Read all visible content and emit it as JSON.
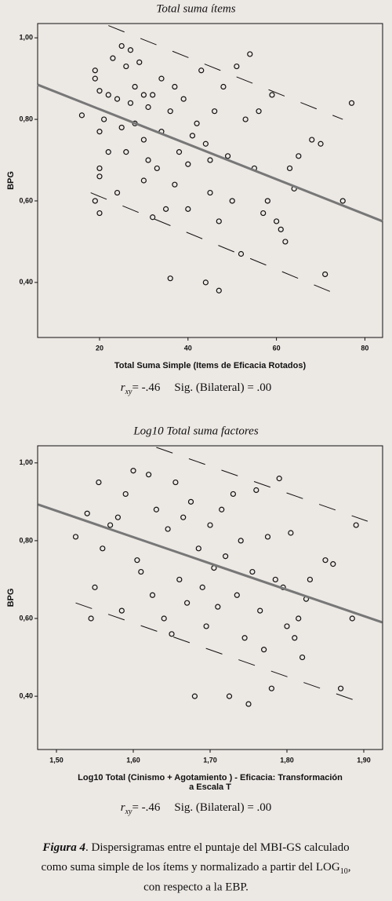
{
  "chart_data": [
    {
      "type": "scatter",
      "title": "Total suma ítems",
      "x_label": [
        "Total Suma Simple (Items de Eficacia Rotados)"
      ],
      "y_label": "BPG",
      "xlim": [
        6,
        84
      ],
      "ylim": [
        0.265,
        1.035
      ],
      "xticks": [
        20,
        40,
        60,
        80
      ],
      "yticks": [
        {
          "value": 0.4,
          "label": "0,40"
        },
        {
          "value": 0.6,
          "label": "0,60"
        },
        {
          "value": 0.8,
          "label": "0,80"
        },
        {
          "value": 1,
          "label": "1,00"
        }
      ],
      "marker_color": "#111",
      "line_color": "#777",
      "x": [
        16,
        19,
        19,
        19,
        20,
        20,
        20,
        20,
        20,
        21,
        22,
        23,
        24,
        24,
        25,
        25,
        26,
        26,
        27,
        27,
        28,
        28,
        29,
        30,
        30,
        31,
        31,
        32,
        32,
        33,
        34,
        34,
        35,
        36,
        36,
        37,
        38,
        39,
        40,
        40,
        41,
        42,
        43,
        44,
        44,
        45,
        46,
        47,
        47,
        48,
        49,
        50,
        51,
        52,
        53,
        54,
        55,
        56,
        57,
        58,
        59,
        60,
        61,
        62,
        63,
        64,
        65,
        68,
        70,
        71,
        75,
        77,
        37,
        30,
        45,
        22
      ],
      "values": [
        0.81,
        0.92,
        0.9,
        0.6,
        0.87,
        0.68,
        0.66,
        0.57,
        0.77,
        0.8,
        0.86,
        0.95,
        0.62,
        0.85,
        0.98,
        0.78,
        0.72,
        0.93,
        0.97,
        0.84,
        0.88,
        0.79,
        0.94,
        0.75,
        0.65,
        0.7,
        0.83,
        0.86,
        0.56,
        0.68,
        0.9,
        0.77,
        0.58,
        0.41,
        0.82,
        0.64,
        0.72,
        0.85,
        0.69,
        0.58,
        0.76,
        0.79,
        0.92,
        0.74,
        0.4,
        0.62,
        0.82,
        0.38,
        0.55,
        0.88,
        0.71,
        0.6,
        0.93,
        0.47,
        0.8,
        0.96,
        0.68,
        0.82,
        0.57,
        0.6,
        0.86,
        0.55,
        0.53,
        0.5,
        0.68,
        0.63,
        0.71,
        0.75,
        0.74,
        0.42,
        0.6,
        0.84,
        0.88,
        0.86,
        0.7,
        0.72
      ],
      "fit_line": {
        "x": [
          6,
          84
        ],
        "y": [
          0.885,
          0.55
        ]
      },
      "interval_lines": [
        {
          "x": [
            22,
            75
          ],
          "y": [
            1.03,
            0.8
          ]
        },
        {
          "x": [
            18,
            75
          ],
          "y": [
            0.62,
            0.365
          ]
        }
      ],
      "stat": {
        "r": "r",
        "sub": "xy",
        "value": "= -.46",
        "sig": "Sig. (Bilateral) = .00"
      }
    },
    {
      "type": "scatter",
      "title": "Log10 Total suma factores",
      "x_label": [
        "Log10 Total (Cinismo + Agotamiento ) - Eficacia: Transformación",
        "a Escala T"
      ],
      "y_label": "BPG",
      "xlim": [
        1.4755,
        1.9245
      ],
      "ylim": [
        0.263,
        1.044
      ],
      "xticks": [
        {
          "value": 1.5,
          "label": "1,50"
        },
        {
          "value": 1.6,
          "label": "1,60"
        },
        {
          "value": 1.7,
          "label": "1,70"
        },
        {
          "value": 1.8,
          "label": "1,80"
        },
        {
          "value": 1.9,
          "label": "1,90"
        }
      ],
      "yticks": [
        {
          "value": 0.4,
          "label": "0,40"
        },
        {
          "value": 0.6,
          "label": "0,60"
        },
        {
          "value": 0.8,
          "label": "0,80"
        },
        {
          "value": 1,
          "label": "1,00"
        }
      ],
      "marker_color": "#111",
      "line_color": "#777",
      "x": [
        1.525,
        1.54,
        1.545,
        1.55,
        1.555,
        1.56,
        1.57,
        1.58,
        1.585,
        1.59,
        1.6,
        1.605,
        1.61,
        1.62,
        1.625,
        1.63,
        1.64,
        1.645,
        1.65,
        1.655,
        1.66,
        1.665,
        1.67,
        1.675,
        1.68,
        1.685,
        1.69,
        1.695,
        1.7,
        1.705,
        1.71,
        1.715,
        1.72,
        1.725,
        1.73,
        1.735,
        1.74,
        1.745,
        1.75,
        1.755,
        1.76,
        1.765,
        1.77,
        1.775,
        1.78,
        1.785,
        1.79,
        1.795,
        1.8,
        1.805,
        1.81,
        1.815,
        1.82,
        1.825,
        1.83,
        1.85,
        1.86,
        1.87,
        1.885,
        1.89
      ],
      "values": [
        0.81,
        0.87,
        0.6,
        0.68,
        0.95,
        0.78,
        0.84,
        0.86,
        0.62,
        0.92,
        0.98,
        0.75,
        0.72,
        0.97,
        0.66,
        0.88,
        0.6,
        0.83,
        0.56,
        0.95,
        0.7,
        0.86,
        0.64,
        0.9,
        0.4,
        0.78,
        0.68,
        0.58,
        0.84,
        0.73,
        0.63,
        0.88,
        0.76,
        0.4,
        0.92,
        0.66,
        0.8,
        0.55,
        0.38,
        0.72,
        0.93,
        0.62,
        0.52,
        0.81,
        0.42,
        0.7,
        0.96,
        0.68,
        0.58,
        0.82,
        0.55,
        0.6,
        0.5,
        0.65,
        0.7,
        0.75,
        0.74,
        0.42,
        0.6,
        0.84
      ],
      "fit_line": {
        "x": [
          1.476,
          1.924
        ],
        "y": [
          0.893,
          0.59
        ]
      },
      "interval_lines": [
        {
          "x": [
            1.63,
            1.905
          ],
          "y": [
            1.04,
            0.85
          ]
        },
        {
          "x": [
            1.525,
            1.895
          ],
          "y": [
            0.64,
            0.385
          ]
        }
      ],
      "stat": {
        "r": "r",
        "sub": "xy",
        "value": "= -.46",
        "sig": "Sig. (Bilateral) = .00"
      }
    }
  ],
  "caption": {
    "label": "Figura 4",
    "line1": ". Dispersigramas entre el puntaje del MBI-GS calculado",
    "line2": "como suma simple de los ítems y normalizado a partir del LOG",
    "sub": "10",
    "comma": ",",
    "line3": "con respecto a la EBP."
  }
}
